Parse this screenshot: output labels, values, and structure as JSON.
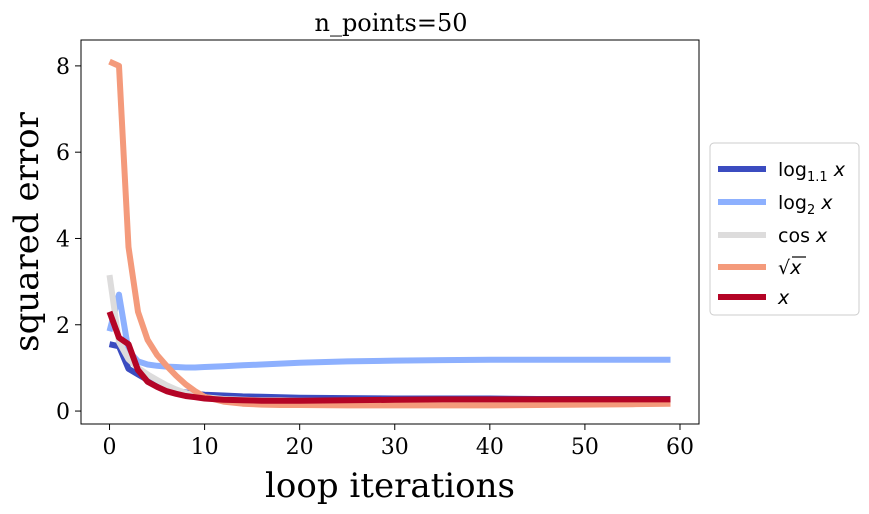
{
  "chart_data": {
    "type": "line",
    "title": "n_points=50",
    "xlabel": "loop iterations",
    "ylabel": "squared error",
    "xlim": [
      -3,
      62
    ],
    "ylim": [
      -0.3,
      8.6
    ],
    "xticks": [
      0,
      10,
      20,
      30,
      40,
      50,
      60
    ],
    "yticks": [
      0,
      2,
      4,
      6,
      8
    ],
    "grid": false,
    "legend_position": "center-right-outside",
    "x": [
      0,
      1,
      2,
      3,
      4,
      5,
      6,
      7,
      8,
      9,
      10,
      12,
      14,
      16,
      18,
      20,
      25,
      30,
      35,
      40,
      45,
      50,
      55,
      59
    ],
    "series": [
      {
        "name": "log_{1.1} x",
        "color": "#3b4cc0",
        "values": [
          1.55,
          1.5,
          0.98,
          0.85,
          0.72,
          0.62,
          0.52,
          0.47,
          0.43,
          0.4,
          0.38,
          0.36,
          0.34,
          0.33,
          0.32,
          0.31,
          0.3,
          0.29,
          0.29,
          0.29,
          0.28,
          0.28,
          0.28,
          0.28
        ]
      },
      {
        "name": "log_2 x",
        "color": "#8db0fe",
        "values": [
          1.85,
          2.7,
          1.4,
          1.15,
          1.08,
          1.05,
          1.03,
          1.02,
          1.01,
          1.01,
          1.02,
          1.04,
          1.06,
          1.08,
          1.1,
          1.12,
          1.15,
          1.17,
          1.18,
          1.19,
          1.19,
          1.19,
          1.19,
          1.19
        ]
      },
      {
        "name": "cos x",
        "color": "#dddcdc",
        "values": [
          3.15,
          1.6,
          1.2,
          1.0,
          0.85,
          0.72,
          0.6,
          0.5,
          0.42,
          0.36,
          0.32,
          0.28,
          0.26,
          0.25,
          0.25,
          0.24,
          0.24,
          0.24,
          0.24,
          0.24,
          0.24,
          0.24,
          0.24,
          0.24
        ]
      },
      {
        "name": "√x",
        "color": "#f49a7b",
        "values": [
          8.1,
          8.0,
          3.8,
          2.3,
          1.65,
          1.3,
          1.05,
          0.82,
          0.62,
          0.46,
          0.33,
          0.22,
          0.17,
          0.15,
          0.14,
          0.14,
          0.13,
          0.13,
          0.13,
          0.13,
          0.14,
          0.15,
          0.16,
          0.17
        ]
      },
      {
        "name": "x",
        "color": "#b40426",
        "values": [
          2.3,
          1.7,
          1.55,
          0.95,
          0.68,
          0.56,
          0.46,
          0.4,
          0.35,
          0.32,
          0.29,
          0.26,
          0.25,
          0.24,
          0.24,
          0.24,
          0.25,
          0.26,
          0.27,
          0.27,
          0.27,
          0.27,
          0.27,
          0.27
        ]
      }
    ]
  }
}
